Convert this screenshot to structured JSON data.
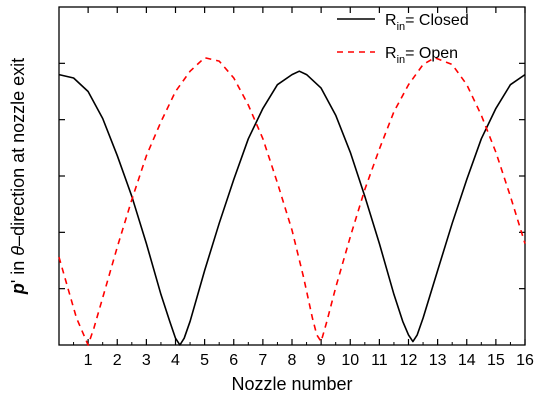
{
  "chart_data": {
    "type": "line",
    "xlabel": "Nozzle number",
    "ylabel": {
      "prefix": "p",
      "prime": "'",
      "middle": " in ",
      "theta": "θ",
      "suffix": "–direction at nozzle exit"
    },
    "xlim": [
      0,
      16
    ],
    "ylim": [
      0,
      1
    ],
    "xticks": [
      "1",
      "2",
      "3",
      "4",
      "5",
      "6",
      "7",
      "8",
      "9",
      "10",
      "11",
      "12",
      "13",
      "14",
      "15",
      "16"
    ],
    "ytick_count": 5,
    "legend_position": "top-right",
    "series": [
      {
        "name_base": "R",
        "name_sub": "in",
        "name_rest": "= Closed",
        "color": "#000000",
        "dash": "solid",
        "x": [
          0.0,
          0.5,
          1.0,
          1.5,
          2.0,
          2.5,
          3.0,
          3.5,
          3.8,
          4.0,
          4.15,
          4.3,
          4.5,
          5.0,
          5.5,
          6.0,
          6.5,
          7.0,
          7.5,
          8.0,
          8.25,
          8.5,
          9.0,
          9.5,
          10.0,
          10.5,
          11.0,
          11.5,
          11.8,
          12.0,
          12.15,
          12.3,
          12.5,
          13.0,
          13.5,
          14.0,
          14.5,
          15.0,
          15.5,
          16.0
        ],
        "y": [
          0.8,
          0.79,
          0.75,
          0.67,
          0.56,
          0.44,
          0.3,
          0.15,
          0.07,
          0.02,
          0.0,
          0.02,
          0.07,
          0.22,
          0.36,
          0.49,
          0.61,
          0.7,
          0.77,
          0.8,
          0.81,
          0.8,
          0.76,
          0.68,
          0.57,
          0.44,
          0.3,
          0.15,
          0.07,
          0.03,
          0.01,
          0.03,
          0.08,
          0.22,
          0.36,
          0.49,
          0.61,
          0.7,
          0.77,
          0.8
        ]
      },
      {
        "name_base": "R",
        "name_sub": "in",
        "name_rest": "= Open",
        "color": "#ff0000",
        "dash": "dashed",
        "x": [
          0.0,
          0.3,
          0.6,
          0.9,
          1.0,
          1.2,
          1.5,
          2.0,
          2.5,
          3.0,
          3.5,
          4.0,
          4.5,
          5.0,
          5.5,
          6.0,
          6.5,
          7.0,
          7.5,
          8.0,
          8.4,
          8.7,
          8.85,
          9.0,
          9.2,
          9.5,
          10.0,
          10.5,
          11.0,
          11.5,
          12.0,
          12.5,
          12.9,
          13.5,
          14.0,
          14.5,
          15.0,
          15.5,
          16.0
        ],
        "y": [
          0.26,
          0.17,
          0.08,
          0.02,
          0.0,
          0.05,
          0.14,
          0.29,
          0.43,
          0.56,
          0.66,
          0.75,
          0.81,
          0.85,
          0.84,
          0.79,
          0.71,
          0.61,
          0.48,
          0.34,
          0.2,
          0.08,
          0.03,
          0.01,
          0.07,
          0.17,
          0.32,
          0.46,
          0.58,
          0.69,
          0.77,
          0.83,
          0.85,
          0.83,
          0.77,
          0.68,
          0.57,
          0.44,
          0.3
        ]
      }
    ]
  }
}
